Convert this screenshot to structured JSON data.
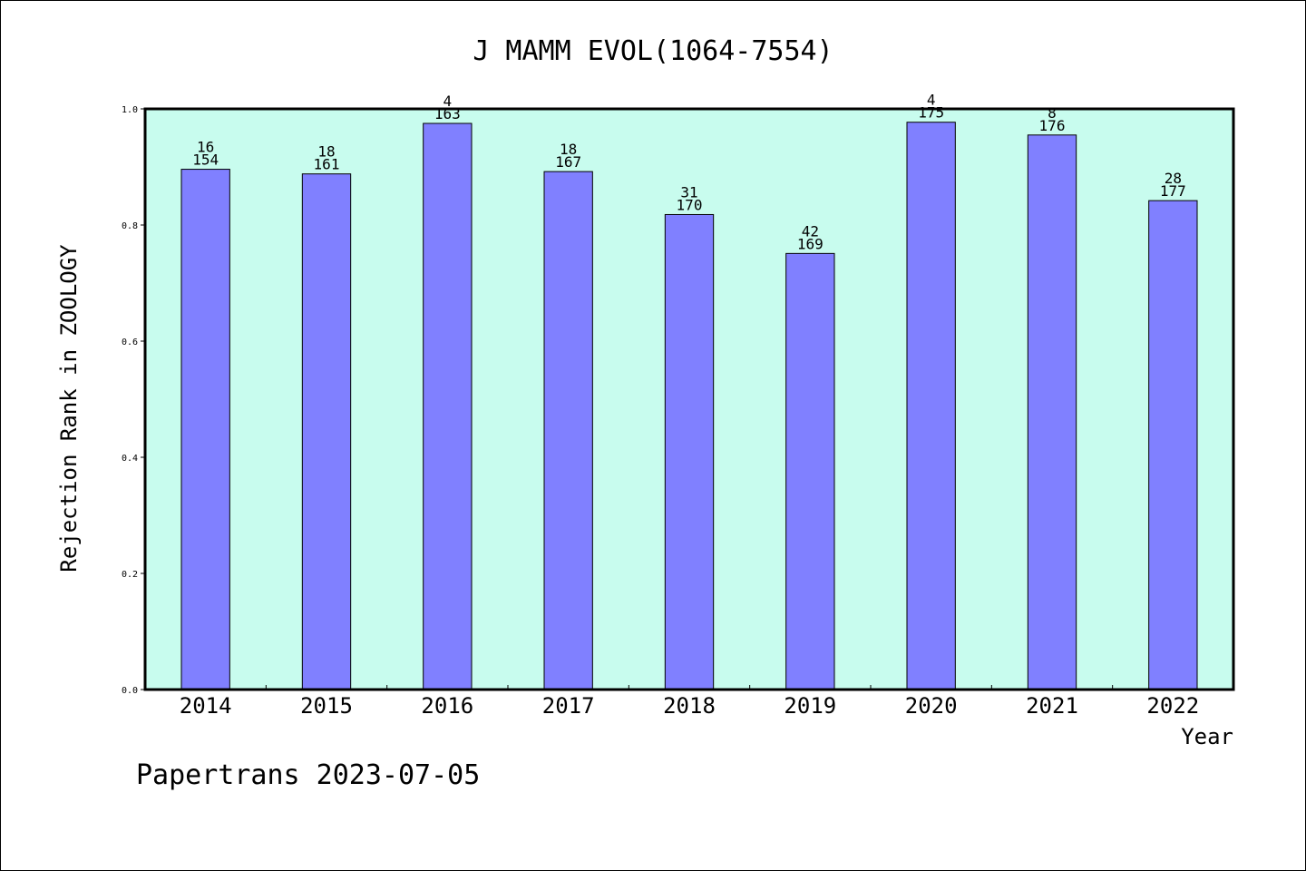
{
  "chart_data": {
    "type": "bar",
    "title": "J MAMM EVOL(1064-7554)",
    "xlabel": "Year",
    "ylabel": "Rejection Rank in ZOOLOGY",
    "ylim": [
      0,
      1.0
    ],
    "yticks": [
      "0.0",
      "0.2",
      "0.4",
      "0.6",
      "0.8",
      "1.0"
    ],
    "categories": [
      "2014",
      "2015",
      "2016",
      "2017",
      "2018",
      "2019",
      "2020",
      "2021",
      "2022"
    ],
    "values": [
      0.896,
      0.888,
      0.975,
      0.892,
      0.818,
      0.751,
      0.977,
      0.955,
      0.842
    ],
    "rank_labels": [
      "16",
      "18",
      "4",
      "18",
      "31",
      "42",
      "4",
      "8",
      "28"
    ],
    "total_labels": [
      "154",
      "161",
      "163",
      "167",
      "170",
      "169",
      "175",
      "176",
      "177"
    ],
    "grid": false,
    "colors": {
      "plot_background": "#c8fcee",
      "bar_fill": "#8080ff",
      "bar_stroke": "#000000"
    }
  },
  "footer": {
    "text": "Papertrans 2023-07-05"
  }
}
